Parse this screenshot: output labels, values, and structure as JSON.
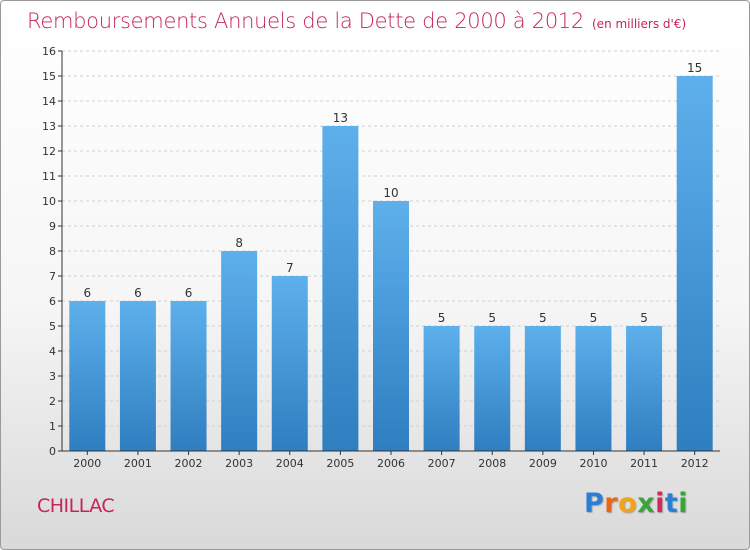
{
  "title": "Remboursements Annuels de la Dette de 2000 à 2012",
  "unit_note": "(en milliers d'€)",
  "commune": "CHILLAC",
  "logo": {
    "letters": [
      "P",
      "r",
      "o",
      "x",
      "i",
      "t",
      "i"
    ],
    "colors": [
      "#2a7fd4",
      "#e8661a",
      "#f2a21b",
      "#3aa33a",
      "#d42a5a",
      "#2a7fd4",
      "#3aa33a"
    ]
  },
  "colors": {
    "title": "#c4245e",
    "bar_top": "#5eb0ec",
    "bar_bottom": "#2f7ec0",
    "axis": "#333333",
    "grid": "#cfcfcf"
  },
  "chart_data": {
    "type": "bar",
    "categories": [
      "2000",
      "2001",
      "2002",
      "2003",
      "2004",
      "2005",
      "2006",
      "2007",
      "2008",
      "2009",
      "2010",
      "2011",
      "2012"
    ],
    "values": [
      6,
      6,
      6,
      8,
      7,
      13,
      10,
      5,
      5,
      5,
      5,
      5,
      15
    ],
    "ylim": [
      0,
      16
    ],
    "yticks": [
      0,
      1,
      2,
      3,
      4,
      5,
      6,
      7,
      8,
      9,
      10,
      11,
      12,
      13,
      14,
      15,
      16
    ],
    "grid": true,
    "data_labels": true
  }
}
